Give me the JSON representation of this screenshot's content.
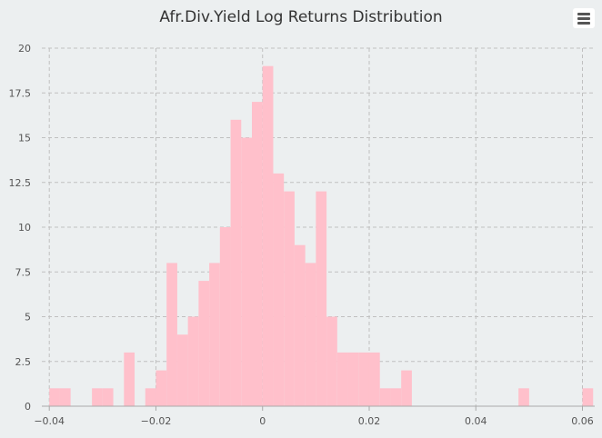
{
  "chart_data": {
    "type": "bar",
    "title": "Afr.Div.Yield Log Returns Distribution",
    "xlabel": "",
    "ylabel": "",
    "xlim": [
      -0.0414,
      0.0623
    ],
    "ylim": [
      0,
      20
    ],
    "grid": true,
    "bar_color": "#ffc0cb",
    "bin_width": 0.002,
    "bins": [
      {
        "x": -0.04,
        "count": 1
      },
      {
        "x": -0.038,
        "count": 1
      },
      {
        "x": -0.032,
        "count": 1
      },
      {
        "x": -0.03,
        "count": 1
      },
      {
        "x": -0.026,
        "count": 3
      },
      {
        "x": -0.022,
        "count": 1
      },
      {
        "x": -0.02,
        "count": 2
      },
      {
        "x": -0.018,
        "count": 8
      },
      {
        "x": -0.016,
        "count": 4
      },
      {
        "x": -0.014,
        "count": 5
      },
      {
        "x": -0.012,
        "count": 7
      },
      {
        "x": -0.01,
        "count": 8
      },
      {
        "x": -0.008,
        "count": 10
      },
      {
        "x": -0.006,
        "count": 16
      },
      {
        "x": -0.004,
        "count": 15
      },
      {
        "x": -0.002,
        "count": 17
      },
      {
        "x": 0.0,
        "count": 19
      },
      {
        "x": 0.002,
        "count": 13
      },
      {
        "x": 0.004,
        "count": 12
      },
      {
        "x": 0.006,
        "count": 9
      },
      {
        "x": 0.008,
        "count": 8
      },
      {
        "x": 0.01,
        "count": 12
      },
      {
        "x": 0.012,
        "count": 5
      },
      {
        "x": 0.014,
        "count": 3
      },
      {
        "x": 0.016,
        "count": 3
      },
      {
        "x": 0.018,
        "count": 3
      },
      {
        "x": 0.02,
        "count": 3
      },
      {
        "x": 0.022,
        "count": 1
      },
      {
        "x": 0.024,
        "count": 1
      },
      {
        "x": 0.026,
        "count": 2
      },
      {
        "x": 0.048,
        "count": 1
      },
      {
        "x": 0.06,
        "count": 1
      }
    ],
    "x_ticks": [
      -0.04,
      -0.02,
      0,
      0.02,
      0.04,
      0.06
    ],
    "x_tick_labels": [
      "−0.04",
      "−0.02",
      "0",
      "0.02",
      "0.04",
      "0.06"
    ],
    "y_ticks": [
      0,
      2.5,
      5,
      7.5,
      10,
      12.5,
      15,
      17.5,
      20
    ],
    "y_tick_labels": [
      "0",
      "2.5",
      "5",
      "7.5",
      "10",
      "12.5",
      "15",
      "17.5",
      "20"
    ]
  },
  "menu_icon": "hamburger-menu-icon"
}
